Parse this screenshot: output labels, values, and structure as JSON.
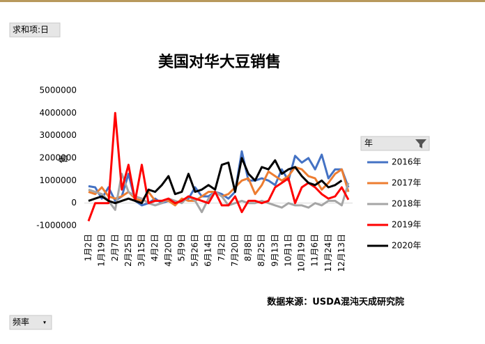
{
  "ui": {
    "pivot_field": "求和项:日",
    "filter_field": "频率"
  },
  "chart_data": {
    "type": "line",
    "title": "美国对华大豆销售",
    "y_label": "售",
    "legend_title": "年",
    "annotation": "数据来源：USDA混沌天成研究院",
    "categories": [
      "1月2日",
      null,
      "1月19日",
      null,
      "2月7日",
      null,
      "2月25日",
      null,
      "3月15日",
      null,
      "4月2日",
      null,
      "4月20日",
      null,
      "5月9日",
      null,
      "5月26日",
      null,
      "6月14日",
      null,
      "7月2日",
      null,
      "7月20日",
      null,
      "8月8日",
      null,
      "8月25日",
      null,
      "9月13日",
      null,
      "10月1日",
      null,
      "10月19日",
      null,
      "11月6日",
      null,
      "11月24日",
      null,
      "12月13日",
      null
    ],
    "ylim": [
      -1000000,
      5000000
    ],
    "yticks": [
      -1000000,
      0,
      1000000,
      2000000,
      3000000,
      4000000,
      5000000
    ],
    "legend": "right",
    "series": [
      {
        "name": "2016年",
        "color": "#4472c4",
        "values": [
          750000,
          700000,
          200000,
          700000,
          100000,
          300000,
          1300000,
          100000,
          -100000,
          0,
          200000,
          0,
          100000,
          0,
          100000,
          200000,
          700000,
          300000,
          300000,
          500000,
          400000,
          200000,
          500000,
          2300000,
          1000000,
          1000000,
          1100000,
          1000000,
          800000,
          1500000,
          1000000,
          2100000,
          1800000,
          2000000,
          1500000,
          2150000,
          1100000,
          1500000,
          1500000,
          700000
        ]
      },
      {
        "name": "2017年",
        "color": "#ed7d31",
        "values": [
          500000,
          400000,
          700000,
          300000,
          200000,
          300000,
          500000,
          200000,
          100000,
          500000,
          100000,
          100000,
          100000,
          -100000,
          200000,
          100000,
          100000,
          300000,
          500000,
          500000,
          300000,
          400000,
          700000,
          1000000,
          1100000,
          400000,
          800000,
          1400000,
          1200000,
          1000000,
          1200000,
          1600000,
          1500000,
          1200000,
          1100000,
          600000,
          900000,
          1300000,
          1500000,
          500000
        ]
      },
      {
        "name": "2018年",
        "color": "#a5a5a5",
        "values": [
          600000,
          500000,
          400000,
          100000,
          -300000,
          1300000,
          500000,
          300000,
          200000,
          0,
          -100000,
          0,
          200000,
          100000,
          0,
          300000,
          100000,
          -400000,
          200000,
          500000,
          300000,
          -100000,
          0,
          100000,
          0,
          0,
          100000,
          0,
          -100000,
          -200000,
          0,
          -100000,
          -100000,
          -200000,
          0,
          -100000,
          100000,
          100000,
          -100000,
          900000
        ]
      },
      {
        "name": "2019年",
        "color": "#ff0000",
        "values": [
          -800000,
          0,
          0,
          0,
          4000000,
          600000,
          1700000,
          100000,
          1700000,
          0,
          100000,
          100000,
          200000,
          0,
          100000,
          300000,
          200000,
          100000,
          0,
          500000,
          -100000,
          -100000,
          300000,
          -400000,
          100000,
          100000,
          0,
          100000,
          700000,
          900000,
          1100000,
          0,
          700000,
          900000,
          700000,
          400000,
          200000,
          300000,
          700000,
          150000
        ]
      },
      {
        "name": "2020年",
        "color": "#000000",
        "values": [
          100000,
          200000,
          300000,
          100000,
          0,
          100000,
          200000,
          100000,
          0,
          600000,
          500000,
          800000,
          1200000,
          400000,
          500000,
          1300000,
          500000,
          600000,
          800000,
          600000,
          1700000,
          1800000,
          500000,
          2000000,
          1300000,
          1000000,
          1600000,
          1500000,
          1900000,
          1300000,
          1500000,
          1600000,
          1200000,
          900000,
          800000,
          1000000,
          700000,
          800000,
          1000000,
          null
        ]
      }
    ]
  }
}
